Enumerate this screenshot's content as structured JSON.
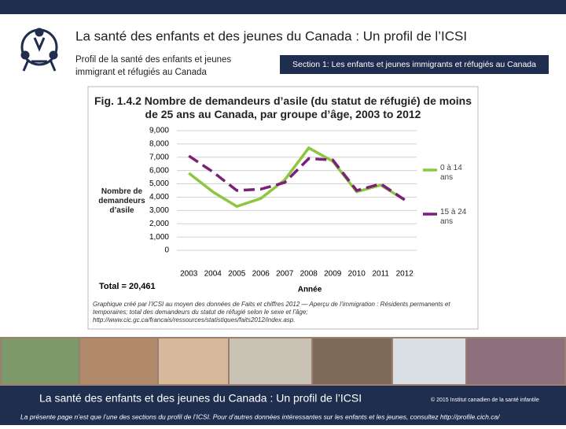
{
  "header": {
    "title": "La santé des enfants et des jeunes du Canada : Un profil de l’ICSI",
    "subtitle": "Profil de la santé des enfants et jeunes immigrant et réfugiés au Canada",
    "section": "Section 1: Les enfants et jeunes immigrants et réfugiés au Canada"
  },
  "chart_data": {
    "type": "line",
    "title": "Fig. 1.4.2 Nombre de demandeurs d’asile (du statut de réfugié) de moins de 25 ans au Canada, par groupe d’âge, 2003 to 2012",
    "y_label": "Nombre de demandeurs d’asile",
    "x_label": "Année",
    "total": "Total = 20,461",
    "source": "Graphique créé par l’ICSI au moyen des données de Faits et chiffres 2012 — Aperçu de l’immigration : Résidents permanents et temporaires; total des demandeurs du statut de réfugié selon le sexe et l’âge; http://www.cic.gc.ca/francais/ressources/statistiques/faits2012/index.asp.",
    "categories": [
      "2003",
      "2004",
      "2005",
      "2006",
      "2007",
      "2008",
      "2009",
      "2010",
      "2011",
      "2012"
    ],
    "series": [
      {
        "name": "0 à 14 ans",
        "color": "#8dc63f",
        "values": [
          5800,
          4400,
          3300,
          3900,
          5300,
          7700,
          6700,
          4400,
          4900,
          3800
        ]
      },
      {
        "name": "15 à 24 ans",
        "color": "#7b1f7a",
        "values": [
          7100,
          5900,
          4500,
          4600,
          5100,
          6900,
          6800,
          4500,
          5000,
          3800
        ]
      }
    ],
    "ylim": [
      0,
      9000
    ],
    "yticks": [
      0,
      {
        "value": 1000,
        "label": "1,000"
      },
      {
        "value": 2000,
        "label": "2,000"
      },
      {
        "value": 3000,
        "label": "3,000"
      },
      {
        "value": 4000,
        "label": "4,000"
      },
      {
        "value": 5000,
        "label": "5,000"
      },
      {
        "value": 6000,
        "label": "6,000"
      },
      {
        "value": 7000,
        "label": "7,000"
      },
      {
        "value": 8000,
        "label": "8,000"
      },
      {
        "value": 9000,
        "label": "9,000"
      }
    ],
    "grid": true
  },
  "footer": {
    "title": "La santé des enfants et des jeunes du Canada : Un profil de l’ICSI",
    "copyright": "© 2015 Institut canadien de la santé infantile",
    "note": "La présente page n’est que l’une des sections du profil de l’ICSI. Pour d’autres données intéressantes sur les enfants et les jeunes, consultez http://profile.cich.ca/"
  }
}
